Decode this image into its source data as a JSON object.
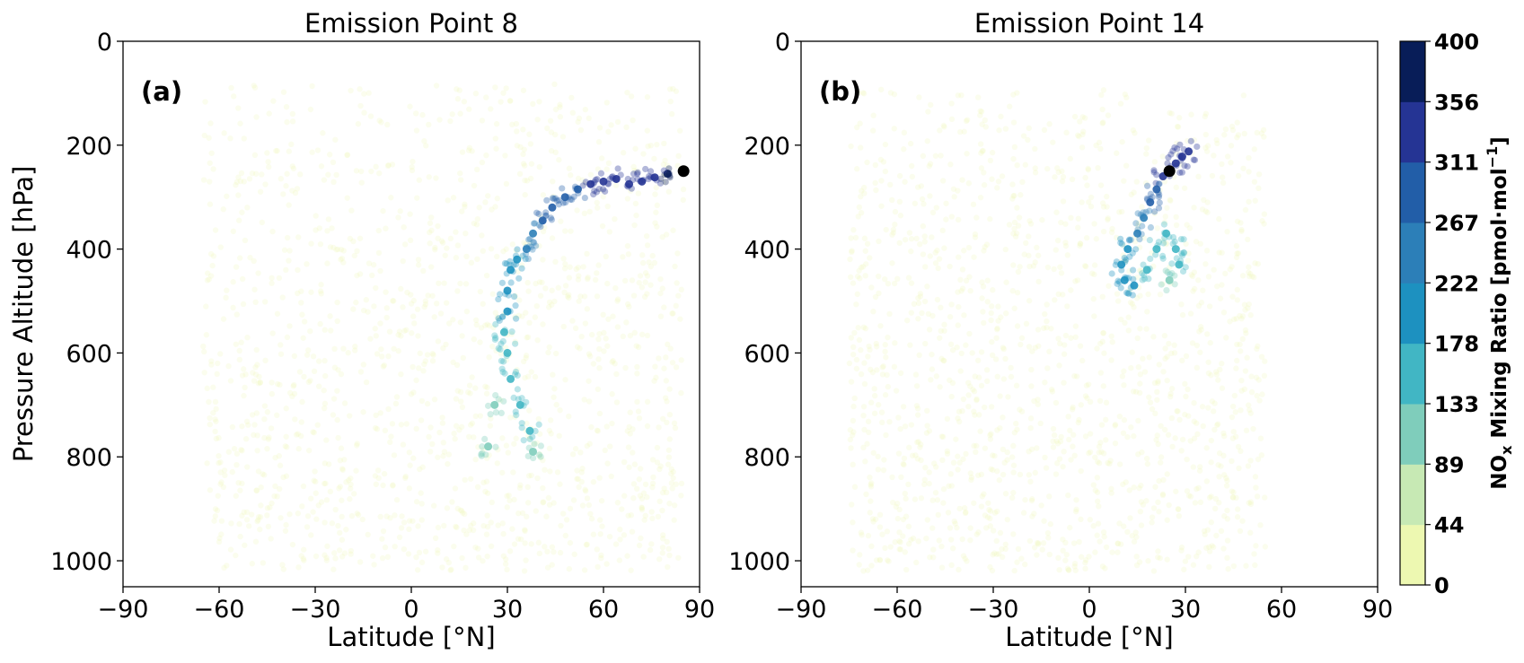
{
  "figure": {
    "colorbar": {
      "label": "NO",
      "label_sub": "x",
      "label_rest": " Mixing Ratio [pmol·mol",
      "label_sup": "−1",
      "label_end": "]",
      "ticks": [
        "0",
        "44",
        "89",
        "133",
        "178",
        "222",
        "267",
        "311",
        "356",
        "400"
      ],
      "colors": [
        "#edf8b1",
        "#c7e9b4",
        "#7fcdbb",
        "#41b6c4",
        "#1d91c0",
        "#2c7fb8",
        "#225ea8",
        "#253494",
        "#081d58"
      ],
      "range": [
        0,
        400
      ]
    }
  },
  "chart_data": [
    {
      "type": "scatter",
      "panel_label": "(a)",
      "title": "Emission Point 8",
      "xlabel": "Latitude [°N]",
      "ylabel": "Pressure Altitude [hPa]",
      "xlim": [
        -90,
        90
      ],
      "ylim": [
        1050,
        0
      ],
      "xticks": [
        "−90",
        "−60",
        "−30",
        "0",
        "30",
        "60",
        "90"
      ],
      "yticks": [
        "0",
        "200",
        "400",
        "600",
        "800",
        "1000"
      ],
      "emission_point": {
        "lat": 85,
        "p": 250
      },
      "background_extent": {
        "lat": [
          -65,
          85
        ],
        "p": [
          80,
          1020
        ],
        "value": 5
      },
      "plume": [
        {
          "lat": 80,
          "p": 255,
          "v": 360
        },
        {
          "lat": 76,
          "p": 262,
          "v": 355
        },
        {
          "lat": 72,
          "p": 270,
          "v": 350
        },
        {
          "lat": 68,
          "p": 275,
          "v": 345
        },
        {
          "lat": 64,
          "p": 265,
          "v": 340
        },
        {
          "lat": 60,
          "p": 270,
          "v": 330
        },
        {
          "lat": 56,
          "p": 275,
          "v": 320
        },
        {
          "lat": 52,
          "p": 285,
          "v": 310
        },
        {
          "lat": 48,
          "p": 300,
          "v": 300
        },
        {
          "lat": 44,
          "p": 320,
          "v": 290
        },
        {
          "lat": 41,
          "p": 345,
          "v": 270
        },
        {
          "lat": 38,
          "p": 370,
          "v": 250
        },
        {
          "lat": 36,
          "p": 400,
          "v": 240
        },
        {
          "lat": 33,
          "p": 420,
          "v": 220
        },
        {
          "lat": 31,
          "p": 440,
          "v": 200
        },
        {
          "lat": 30,
          "p": 480,
          "v": 190
        },
        {
          "lat": 30,
          "p": 520,
          "v": 180
        },
        {
          "lat": 29,
          "p": 560,
          "v": 170
        },
        {
          "lat": 30,
          "p": 600,
          "v": 160
        },
        {
          "lat": 31,
          "p": 650,
          "v": 150
        },
        {
          "lat": 34,
          "p": 700,
          "v": 150
        },
        {
          "lat": 37,
          "p": 750,
          "v": 140
        },
        {
          "lat": 38,
          "p": 790,
          "v": 130
        },
        {
          "lat": 26,
          "p": 700,
          "v": 120
        },
        {
          "lat": 24,
          "p": 780,
          "v": 100
        }
      ]
    },
    {
      "type": "scatter",
      "panel_label": "(b)",
      "title": "Emission Point 14",
      "xlabel": "Latitude [°N]",
      "ylabel": "",
      "xlim": [
        -90,
        90
      ],
      "ylim": [
        1050,
        0
      ],
      "xticks": [
        "−90",
        "−60",
        "−30",
        "0",
        "30",
        "60",
        "90"
      ],
      "yticks": [
        "0",
        "200",
        "400",
        "600",
        "800",
        "1000"
      ],
      "emission_point": {
        "lat": 25,
        "p": 250
      },
      "background_extent": {
        "lat": [
          -75,
          55
        ],
        "p": [
          90,
          1020
        ],
        "value": 5
      },
      "plume": [
        {
          "lat": 31,
          "p": 212,
          "v": 350
        },
        {
          "lat": 29,
          "p": 222,
          "v": 345
        },
        {
          "lat": 27,
          "p": 235,
          "v": 340
        },
        {
          "lat": 23,
          "p": 260,
          "v": 320
        },
        {
          "lat": 21,
          "p": 285,
          "v": 300
        },
        {
          "lat": 19,
          "p": 310,
          "v": 280
        },
        {
          "lat": 17,
          "p": 340,
          "v": 260
        },
        {
          "lat": 15,
          "p": 370,
          "v": 240
        },
        {
          "lat": 12,
          "p": 400,
          "v": 220
        },
        {
          "lat": 10,
          "p": 430,
          "v": 210
        },
        {
          "lat": 11,
          "p": 460,
          "v": 200
        },
        {
          "lat": 14,
          "p": 470,
          "v": 190
        },
        {
          "lat": 18,
          "p": 440,
          "v": 170
        },
        {
          "lat": 21,
          "p": 400,
          "v": 160
        },
        {
          "lat": 24,
          "p": 370,
          "v": 160
        },
        {
          "lat": 27,
          "p": 400,
          "v": 150
        },
        {
          "lat": 28,
          "p": 430,
          "v": 140
        },
        {
          "lat": 25,
          "p": 460,
          "v": 130
        }
      ]
    }
  ]
}
